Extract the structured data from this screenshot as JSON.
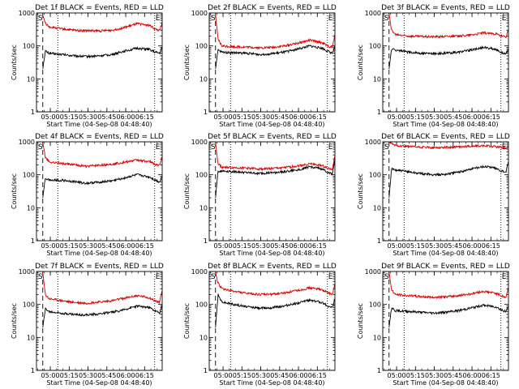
{
  "figure": {
    "background": "#ffffff",
    "color_events": "#000000",
    "color_lld": "#d40000"
  },
  "chart_data": [
    {
      "type": "line",
      "title": "Det 1f BLACK = Events, RED = LLD",
      "xlabel": "Start Time (04-Sep-08 04:48:40)",
      "ylabel": "Counts/sec",
      "yscale": "log",
      "ylim": [
        1,
        1000
      ],
      "yticks": [
        "1",
        "10",
        "100",
        "1000"
      ],
      "xticks": [
        "05:00",
        "05:15",
        "05:30",
        "05:45",
        "06:00",
        "06:15"
      ],
      "x_unit": "minutes since 04:48:40",
      "markers": [
        {
          "label": "S",
          "x": 0,
          "style": "solid"
        },
        {
          "label": "E",
          "x": 94,
          "style": "dotted"
        }
      ],
      "vlines": [
        {
          "x": 5,
          "style": "dashed"
        },
        {
          "x": 17,
          "style": "dotted"
        }
      ],
      "series": [
        {
          "name": "Events",
          "color": "#000000",
          "x": [
            5,
            7,
            10,
            20,
            30,
            40,
            50,
            60,
            70,
            80,
            90,
            94,
            98,
            100
          ],
          "values": [
            20,
            70,
            60,
            55,
            50,
            48,
            50,
            55,
            70,
            85,
            78,
            65,
            60,
            90
          ]
        },
        {
          "name": "LLD",
          "color": "#d40000",
          "x": [
            5,
            7,
            10,
            20,
            30,
            40,
            50,
            60,
            70,
            80,
            90,
            94,
            98,
            100
          ],
          "values": [
            850,
            500,
            380,
            330,
            300,
            290,
            285,
            300,
            360,
            470,
            420,
            330,
            290,
            480
          ]
        }
      ]
    },
    {
      "type": "line",
      "title": "Det 2f BLACK = Events, RED = LLD",
      "xlabel": "Start Time (04-Sep-08 04:48:40)",
      "ylabel": "Counts/sec",
      "yscale": "log",
      "ylim": [
        1,
        1000
      ],
      "yticks": [
        "1",
        "10",
        "100",
        "1000"
      ],
      "xticks": [
        "05:00",
        "05:15",
        "05:30",
        "05:45",
        "06:00",
        "06:15"
      ],
      "x_unit": "minutes since 04:48:40",
      "markers": [
        {
          "label": "S",
          "x": 0,
          "style": "solid"
        },
        {
          "label": "E",
          "x": 94,
          "style": "dotted"
        }
      ],
      "vlines": [
        {
          "x": 5,
          "style": "dashed"
        },
        {
          "x": 17,
          "style": "dotted"
        }
      ],
      "series": [
        {
          "name": "Events",
          "color": "#000000",
          "x": [
            5,
            7,
            10,
            20,
            30,
            40,
            50,
            60,
            70,
            80,
            90,
            94,
            98,
            100
          ],
          "values": [
            20,
            75,
            65,
            62,
            60,
            55,
            58,
            65,
            80,
            100,
            85,
            70,
            60,
            95
          ]
        },
        {
          "name": "LLD",
          "color": "#d40000",
          "x": [
            5,
            7,
            10,
            20,
            30,
            40,
            50,
            60,
            70,
            80,
            90,
            94,
            98,
            100
          ],
          "values": [
            900,
            160,
            100,
            95,
            92,
            88,
            90,
            100,
            120,
            150,
            125,
            100,
            90,
            220
          ]
        }
      ]
    },
    {
      "type": "line",
      "title": "Det 3f BLACK = Events, RED = LLD",
      "xlabel": "Start Time (04-Sep-08 04:48:40)",
      "ylabel": "Counts/sec",
      "yscale": "log",
      "ylim": [
        1,
        1000
      ],
      "yticks": [
        "1",
        "10",
        "100",
        "1000"
      ],
      "xticks": [
        "05:00",
        "05:15",
        "05:30",
        "05:45",
        "06:00",
        "06:15"
      ],
      "x_unit": "minutes since 04:48:40",
      "markers": [
        {
          "label": "S",
          "x": 0,
          "style": "solid"
        },
        {
          "label": "E",
          "x": 94,
          "style": "dotted"
        }
      ],
      "vlines": [
        {
          "x": 5,
          "style": "dashed"
        },
        {
          "x": 17,
          "style": "dotted"
        }
      ],
      "series": [
        {
          "name": "Events",
          "color": "#000000",
          "x": [
            5,
            7,
            10,
            20,
            30,
            40,
            50,
            60,
            70,
            80,
            90,
            94,
            98,
            100
          ],
          "values": [
            20,
            80,
            75,
            65,
            60,
            58,
            60,
            65,
            75,
            90,
            80,
            65,
            55,
            85
          ]
        },
        {
          "name": "LLD",
          "color": "#d40000",
          "x": [
            5,
            7,
            10,
            20,
            30,
            40,
            50,
            60,
            70,
            80,
            90,
            94,
            98,
            100
          ],
          "values": [
            950,
            300,
            220,
            200,
            195,
            190,
            195,
            200,
            215,
            250,
            230,
            200,
            185,
            320
          ]
        }
      ]
    },
    {
      "type": "line",
      "title": "Det 4f BLACK = Events, RED = LLD",
      "xlabel": "Start Time (04-Sep-08 04:48:40)",
      "ylabel": "Counts/sec",
      "yscale": "log",
      "ylim": [
        1,
        1000
      ],
      "yticks": [
        "1",
        "10",
        "100",
        "1000"
      ],
      "xticks": [
        "05:00",
        "05:15",
        "05:30",
        "05:45",
        "06:00",
        "06:15"
      ],
      "x_unit": "minutes since 04:48:40",
      "markers": [
        {
          "label": "S",
          "x": 0,
          "style": "solid"
        },
        {
          "label": "E",
          "x": 94,
          "style": "dotted"
        }
      ],
      "vlines": [
        {
          "x": 5,
          "style": "dashed"
        },
        {
          "x": 17,
          "style": "dotted"
        }
      ],
      "series": [
        {
          "name": "Events",
          "color": "#000000",
          "x": [
            5,
            7,
            10,
            20,
            30,
            40,
            50,
            60,
            70,
            80,
            90,
            94,
            98,
            100
          ],
          "values": [
            20,
            80,
            70,
            68,
            62,
            55,
            60,
            65,
            80,
            100,
            85,
            70,
            60,
            90
          ]
        },
        {
          "name": "LLD",
          "color": "#d40000",
          "x": [
            5,
            7,
            10,
            20,
            30,
            40,
            50,
            60,
            70,
            80,
            90,
            94,
            98,
            100
          ],
          "values": [
            950,
            350,
            250,
            220,
            200,
            180,
            195,
            210,
            240,
            280,
            250,
            210,
            190,
            380
          ]
        }
      ]
    },
    {
      "type": "line",
      "title": "Det 5f BLACK = Events, RED = LLD",
      "xlabel": "Start Time (04-Sep-08 04:48:40)",
      "ylabel": "Counts/sec",
      "yscale": "log",
      "ylim": [
        1,
        1000
      ],
      "yticks": [
        "1",
        "10",
        "100",
        "1000"
      ],
      "xticks": [
        "05:00",
        "05:15",
        "05:30",
        "05:45",
        "06:00",
        "06:15"
      ],
      "x_unit": "minutes since 04:48:40",
      "markers": [
        {
          "label": "S",
          "x": 0,
          "style": "solid"
        },
        {
          "label": "E",
          "x": 94,
          "style": "dotted"
        }
      ],
      "vlines": [
        {
          "x": 5,
          "style": "dashed"
        },
        {
          "x": 17,
          "style": "dotted"
        }
      ],
      "series": [
        {
          "name": "Events",
          "color": "#000000",
          "x": [
            5,
            7,
            10,
            20,
            30,
            40,
            50,
            60,
            70,
            80,
            90,
            94,
            98,
            100
          ],
          "values": [
            20,
            130,
            130,
            125,
            115,
            110,
            115,
            125,
            140,
            175,
            150,
            120,
            110,
            300
          ]
        },
        {
          "name": "LLD",
          "color": "#d40000",
          "x": [
            5,
            7,
            10,
            20,
            30,
            40,
            50,
            60,
            70,
            80,
            90,
            94,
            98,
            100
          ],
          "values": [
            950,
            220,
            170,
            165,
            160,
            150,
            155,
            165,
            185,
            215,
            190,
            160,
            145,
            400
          ]
        }
      ]
    },
    {
      "type": "line",
      "title": "Det 6f BLACK = Events, RED = LLD",
      "xlabel": "Start Time (04-Sep-08 04:48:40)",
      "ylabel": "Counts/sec",
      "yscale": "log",
      "ylim": [
        1,
        1000
      ],
      "yticks": [
        "1",
        "10",
        "100",
        "1000"
      ],
      "xticks": [
        "05:00",
        "05:15",
        "05:30",
        "05:45",
        "06:00",
        "06:15"
      ],
      "x_unit": "minutes since 04:48:40",
      "markers": [
        {
          "label": "S",
          "x": 0,
          "style": "solid"
        },
        {
          "label": "E",
          "x": 94,
          "style": "dotted"
        }
      ],
      "vlines": [
        {
          "x": 5,
          "style": "dashed"
        },
        {
          "x": 17,
          "style": "dotted"
        }
      ],
      "series": [
        {
          "name": "Events",
          "color": "#000000",
          "x": [
            5,
            7,
            10,
            20,
            30,
            40,
            50,
            60,
            70,
            80,
            90,
            94,
            98,
            100
          ],
          "values": [
            20,
            150,
            140,
            125,
            110,
            100,
            105,
            120,
            150,
            180,
            160,
            130,
            120,
            250
          ]
        },
        {
          "name": "LLD",
          "color": "#d40000",
          "x": [
            5,
            7,
            10,
            20,
            30,
            40,
            50,
            60,
            70,
            80,
            90,
            94,
            98,
            100
          ],
          "values": [
            950,
            900,
            780,
            720,
            690,
            670,
            680,
            700,
            730,
            760,
            720,
            680,
            640,
            700
          ]
        }
      ]
    },
    {
      "type": "line",
      "title": "Det 7f BLACK = Events, RED = LLD",
      "xlabel": "Start Time (04-Sep-08 04:48:40)",
      "ylabel": "Counts/sec",
      "yscale": "log",
      "ylim": [
        1,
        1000
      ],
      "yticks": [
        "1",
        "10",
        "100",
        "1000"
      ],
      "xticks": [
        "05:00",
        "05:15",
        "05:30",
        "05:45",
        "06:00",
        "06:15"
      ],
      "x_unit": "minutes since 04:48:40",
      "markers": [
        {
          "label": "S",
          "x": 0,
          "style": "solid"
        },
        {
          "label": "E",
          "x": 94,
          "style": "dotted"
        }
      ],
      "vlines": [
        {
          "x": 5,
          "style": "dashed"
        },
        {
          "x": 17,
          "style": "dotted"
        }
      ],
      "series": [
        {
          "name": "Events",
          "color": "#000000",
          "x": [
            5,
            7,
            10,
            20,
            30,
            40,
            50,
            60,
            70,
            80,
            90,
            94,
            98,
            100
          ],
          "values": [
            20,
            75,
            60,
            55,
            50,
            48,
            52,
            58,
            70,
            90,
            80,
            65,
            55,
            95
          ]
        },
        {
          "name": "LLD",
          "color": "#d40000",
          "x": [
            5,
            7,
            10,
            20,
            30,
            40,
            50,
            60,
            70,
            80,
            90,
            94,
            98,
            100
          ],
          "values": [
            950,
            200,
            150,
            130,
            115,
            110,
            118,
            130,
            155,
            185,
            160,
            130,
            115,
            270
          ]
        }
      ]
    },
    {
      "type": "line",
      "title": "Det 8f BLACK = Events, RED = LLD",
      "xlabel": "Start Time (04-Sep-08 04:48:40)",
      "ylabel": "Counts/sec",
      "yscale": "log",
      "ylim": [
        1,
        1000
      ],
      "yticks": [
        "1",
        "10",
        "100",
        "1000"
      ],
      "xticks": [
        "05:00",
        "05:15",
        "05:30",
        "05:45",
        "06:00",
        "06:15"
      ],
      "x_unit": "minutes since 04:48:40",
      "markers": [
        {
          "label": "S",
          "x": 0,
          "style": "solid"
        },
        {
          "label": "E",
          "x": 94,
          "style": "dotted"
        }
      ],
      "vlines": [
        {
          "x": 5,
          "style": "dashed"
        },
        {
          "x": 17,
          "style": "dotted"
        }
      ],
      "series": [
        {
          "name": "Events",
          "color": "#000000",
          "x": [
            5,
            7,
            10,
            20,
            30,
            40,
            50,
            60,
            70,
            80,
            90,
            94,
            98,
            100
          ],
          "values": [
            20,
            200,
            120,
            100,
            85,
            78,
            80,
            90,
            110,
            135,
            115,
            90,
            80,
            160
          ]
        },
        {
          "name": "LLD",
          "color": "#d40000",
          "x": [
            5,
            7,
            10,
            20,
            30,
            40,
            50,
            60,
            70,
            80,
            90,
            94,
            98,
            100
          ],
          "values": [
            950,
            450,
            300,
            250,
            215,
            200,
            205,
            225,
            265,
            320,
            280,
            230,
            200,
            400
          ]
        }
      ]
    },
    {
      "type": "line",
      "title": "Det 9f BLACK = Events, RED = LLD",
      "xlabel": "Start Time (04-Sep-08 04:48:40)",
      "ylabel": "Counts/sec",
      "yscale": "log",
      "ylim": [
        1,
        1000
      ],
      "yticks": [
        "1",
        "10",
        "100",
        "1000"
      ],
      "xticks": [
        "05:00",
        "05:15",
        "05:30",
        "05:45",
        "06:00",
        "06:15"
      ],
      "x_unit": "minutes since 04:48:40",
      "markers": [
        {
          "label": "S",
          "x": 0,
          "style": "solid"
        },
        {
          "label": "E",
          "x": 94,
          "style": "dotted"
        }
      ],
      "vlines": [
        {
          "x": 5,
          "style": "dashed"
        },
        {
          "x": 17,
          "style": "dotted"
        }
      ],
      "series": [
        {
          "name": "Events",
          "color": "#000000",
          "x": [
            5,
            7,
            10,
            20,
            30,
            40,
            50,
            60,
            70,
            80,
            90,
            94,
            98,
            100
          ],
          "values": [
            20,
            80,
            65,
            62,
            58,
            55,
            58,
            65,
            78,
            95,
            85,
            70,
            60,
            90
          ]
        },
        {
          "name": "LLD",
          "color": "#d40000",
          "x": [
            5,
            7,
            10,
            20,
            30,
            40,
            50,
            60,
            70,
            80,
            90,
            94,
            98,
            100
          ],
          "values": [
            950,
            280,
            200,
            185,
            175,
            165,
            170,
            185,
            210,
            250,
            220,
            185,
            165,
            330
          ]
        }
      ]
    }
  ]
}
